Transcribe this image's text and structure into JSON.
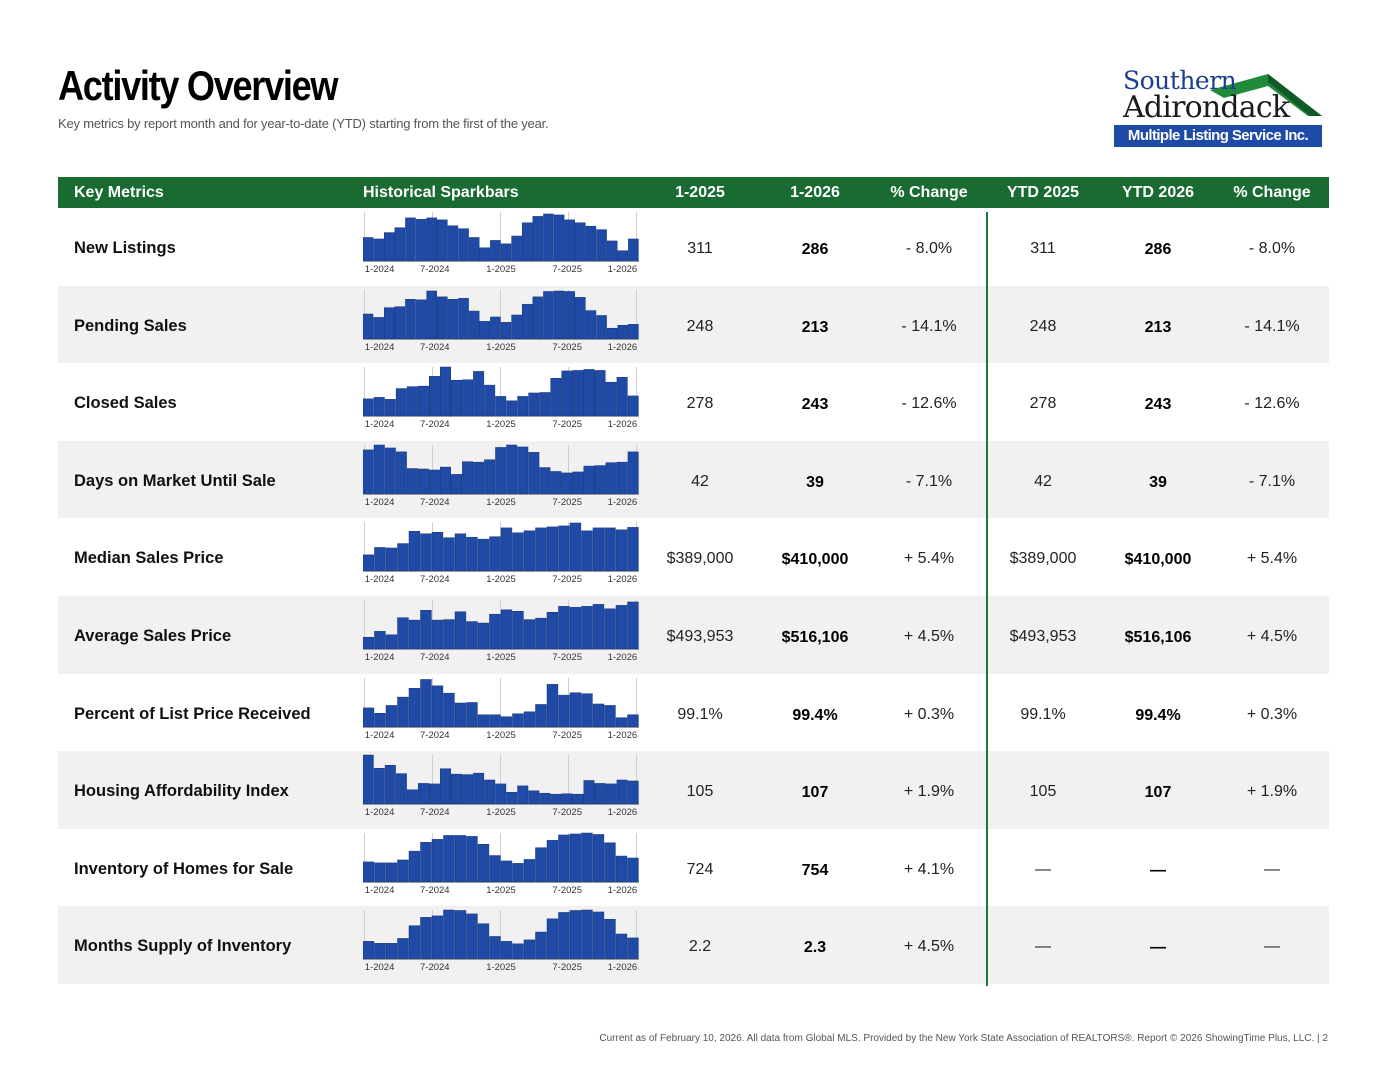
{
  "page": {
    "title": "Activity Overview",
    "subtitle": "Key metrics by report month and for year-to-date (YTD) starting from the first of the year.",
    "footer": "Current as of February 10, 2026. All data from Global MLS. Provided by the New York State Association of REALTORS®. Report © 2026 ShowingTime Plus, LLC.  |  2"
  },
  "logo": {
    "line1": "Southern",
    "line2": "Adirondack",
    "line3": "Multiple Listing Service Inc.",
    "colors": {
      "blue": "#1f4aa5",
      "green": "#1f8a3a",
      "dark_green": "#0f5a26"
    }
  },
  "colors": {
    "header_bg": "#1a6b32",
    "bar": "#1f4aa5",
    "bar_edge": "#16337a",
    "alt_row": "#f1f1f1",
    "divider": "#1a7a35"
  },
  "table": {
    "headers": [
      "Key Metrics",
      "Historical Sparkbars",
      "1-2025",
      "1-2026",
      "% Change",
      "YTD 2025",
      "YTD 2026",
      "% Change"
    ],
    "spark_ticks": [
      "1-2024",
      "7-2024",
      "1-2025",
      "7-2025",
      "1-2026"
    ],
    "rows": [
      {
        "metric": "New Listings",
        "v2025": "311",
        "v2026": "286",
        "change": "- 8.0%",
        "ytd2025": "311",
        "ytd2026": "286",
        "ytd_change": "- 8.0%",
        "spark": [
          0.48,
          0.45,
          0.58,
          0.68,
          0.88,
          0.85,
          0.88,
          0.84,
          0.72,
          0.66,
          0.48,
          0.27,
          0.42,
          0.35,
          0.51,
          0.78,
          0.91,
          0.96,
          0.94,
          0.84,
          0.78,
          0.71,
          0.64,
          0.41,
          0.21,
          0.45
        ]
      },
      {
        "metric": "Pending Sales",
        "v2025": "248",
        "v2026": "213",
        "change": "- 14.1%",
        "ytd2025": "248",
        "ytd2026": "213",
        "ytd_change": "- 14.1%",
        "spark": [
          0.51,
          0.44,
          0.64,
          0.66,
          0.81,
          0.8,
          0.98,
          0.86,
          0.81,
          0.83,
          0.57,
          0.36,
          0.45,
          0.34,
          0.49,
          0.71,
          0.86,
          0.97,
          0.98,
          0.97,
          0.85,
          0.58,
          0.48,
          0.22,
          0.28,
          0.3
        ]
      },
      {
        "metric": "Closed Sales",
        "v2025": "278",
        "v2026": "243",
        "change": "- 12.6%",
        "ytd2025": "278",
        "ytd2026": "243",
        "ytd_change": "- 12.6%",
        "spark": [
          0.35,
          0.38,
          0.34,
          0.56,
          0.6,
          0.61,
          0.81,
          1.0,
          0.73,
          0.74,
          0.91,
          0.63,
          0.4,
          0.31,
          0.4,
          0.47,
          0.48,
          0.77,
          0.92,
          0.93,
          0.95,
          0.93,
          0.69,
          0.79,
          0.41
        ]
      },
      {
        "metric": "Days on Market Until Sale",
        "v2025": "42",
        "v2026": "39",
        "change": "- 7.1%",
        "ytd2025": "42",
        "ytd2026": "39",
        "ytd_change": "- 7.1%",
        "spark": [
          0.9,
          1.0,
          0.94,
          0.86,
          0.52,
          0.51,
          0.49,
          0.55,
          0.4,
          0.66,
          0.65,
          0.7,
          0.95,
          1.0,
          0.96,
          0.85,
          0.54,
          0.46,
          0.43,
          0.45,
          0.57,
          0.58,
          0.64,
          0.65,
          0.86
        ]
      },
      {
        "metric": "Median Sales Price",
        "v2025": "$389,000",
        "v2026": "$410,000",
        "change": "+ 5.4%",
        "ytd2025": "$389,000",
        "ytd2026": "$410,000",
        "ytd_change": "+ 5.4%",
        "spark": [
          0.33,
          0.48,
          0.47,
          0.56,
          0.81,
          0.76,
          0.79,
          0.68,
          0.76,
          0.69,
          0.65,
          0.7,
          0.88,
          0.78,
          0.82,
          0.88,
          0.9,
          0.92,
          0.98,
          0.82,
          0.88,
          0.88,
          0.84,
          0.89
        ]
      },
      {
        "metric": "Average Sales Price",
        "v2025": "$493,953",
        "v2026": "$516,106",
        "change": "+ 4.5%",
        "ytd2025": "$493,953",
        "ytd2026": "$516,106",
        "ytd_change": "+ 4.5%",
        "spark": [
          0.24,
          0.36,
          0.29,
          0.64,
          0.59,
          0.79,
          0.59,
          0.6,
          0.76,
          0.56,
          0.53,
          0.71,
          0.8,
          0.77,
          0.6,
          0.63,
          0.75,
          0.87,
          0.85,
          0.87,
          0.91,
          0.82,
          0.89,
          0.96
        ]
      },
      {
        "metric": "Percent of List Price Received",
        "v2025": "99.1%",
        "v2026": "99.4%",
        "change": "+ 0.3%",
        "ytd2025": "99.1%",
        "ytd2026": "99.4%",
        "ytd_change": "+ 0.3%",
        "spark": [
          0.39,
          0.28,
          0.44,
          0.61,
          0.79,
          0.97,
          0.84,
          0.69,
          0.49,
          0.5,
          0.25,
          0.25,
          0.21,
          0.27,
          0.31,
          0.46,
          0.87,
          0.65,
          0.7,
          0.68,
          0.47,
          0.44,
          0.19,
          0.25
        ]
      },
      {
        "metric": "Housing Affordability Index",
        "v2025": "105",
        "v2026": "107",
        "change": "+ 1.9%",
        "ytd2025": "105",
        "ytd2026": "107",
        "ytd_change": "+ 1.9%",
        "spark": [
          1.0,
          0.73,
          0.79,
          0.62,
          0.29,
          0.42,
          0.41,
          0.72,
          0.61,
          0.6,
          0.63,
          0.49,
          0.41,
          0.24,
          0.37,
          0.27,
          0.22,
          0.2,
          0.21,
          0.2,
          0.48,
          0.42,
          0.41,
          0.49,
          0.47
        ]
      },
      {
        "metric": "Inventory of Homes for Sale",
        "v2025": "724",
        "v2026": "754",
        "change": "+ 4.1%",
        "ytd2025": "—",
        "ytd2026": "—",
        "ytd_change": "—",
        "spark": [
          0.41,
          0.39,
          0.39,
          0.45,
          0.63,
          0.81,
          0.87,
          0.95,
          0.95,
          0.93,
          0.77,
          0.54,
          0.43,
          0.38,
          0.46,
          0.7,
          0.85,
          0.96,
          0.98,
          1.0,
          0.97,
          0.8,
          0.53,
          0.49
        ]
      },
      {
        "metric": "Months Supply of Inventory",
        "v2025": "2.2",
        "v2026": "2.3",
        "change": "+ 4.5%",
        "ytd2025": "—",
        "ytd2026": "—",
        "ytd_change": "—",
        "spark": [
          0.36,
          0.32,
          0.32,
          0.42,
          0.68,
          0.85,
          0.88,
          1.0,
          0.99,
          0.92,
          0.72,
          0.46,
          0.36,
          0.31,
          0.39,
          0.55,
          0.82,
          0.95,
          0.99,
          1.0,
          0.96,
          0.81,
          0.51,
          0.43
        ]
      }
    ]
  }
}
